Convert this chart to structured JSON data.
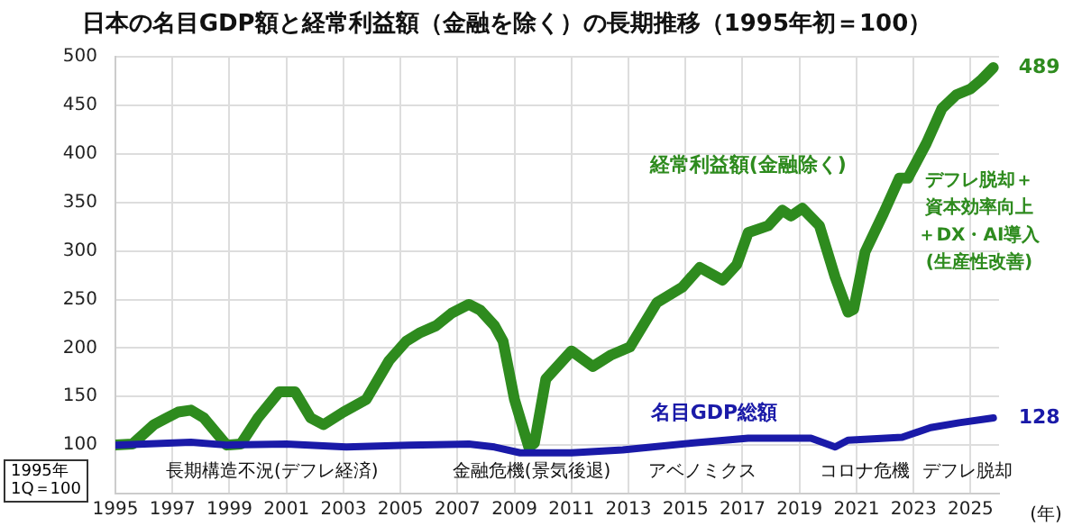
{
  "chart_data": {
    "type": "line",
    "title": "日本の名目GDP額と経常利益額（金融を除く）の長期推移（1995年初＝100）",
    "xlabel": "(年)",
    "xlim": [
      1995,
      2026
    ],
    "xticks": [
      1995,
      1997,
      1999,
      2001,
      2003,
      2005,
      2007,
      2009,
      2011,
      2013,
      2015,
      2017,
      2019,
      2021,
      2023,
      2025
    ],
    "ylim": [
      50,
      500
    ],
    "yticks": [
      100,
      150,
      200,
      250,
      300,
      350,
      400,
      450,
      500
    ],
    "grid": true,
    "legend": false,
    "marker": "none",
    "line_style": "solid",
    "series": [
      {
        "name": "経常利益額(金融除く)",
        "color": "#2e8b1e",
        "x": [
          1995,
          1995.6,
          1996.35,
          1996.8,
          1997.2,
          1997.65,
          1998.1,
          1998.9,
          1999.4,
          2000,
          2000.75,
          2001.3,
          2001.85,
          2002.3,
          2003,
          2003.8,
          2004.6,
          2005.2,
          2005.7,
          2006.25,
          2006.8,
          2007.4,
          2007.8,
          2008.3,
          2008.6,
          2009,
          2009.5,
          2009.7,
          2010.1,
          2011,
          2011.75,
          2012.4,
          2013.05,
          2014,
          2014.9,
          2015.5,
          2016.3,
          2016.8,
          2017.2,
          2017.9,
          2018.4,
          2018.7,
          2019.1,
          2019.7,
          2020.25,
          2020.7,
          2020.9,
          2021.3,
          2021.95,
          2022.5,
          2022.8,
          2023.45,
          2024,
          2024.5,
          2025,
          2025.4,
          2025.8
        ],
        "values": [
          100,
          101,
          121,
          128,
          134,
          136,
          128,
          100,
          101,
          128,
          155,
          155,
          128,
          121,
          134,
          147,
          187,
          207,
          216,
          223,
          236,
          245,
          239,
          223,
          207,
          147,
          98,
          102,
          168,
          197,
          181,
          193,
          201,
          247,
          263,
          283,
          270,
          286,
          319,
          326,
          342,
          336,
          344,
          326,
          273,
          237,
          240,
          299,
          339,
          375,
          375,
          411,
          447,
          461,
          467,
          477,
          489
        ],
        "value_labels": [
          null,
          null,
          null,
          null,
          null,
          null,
          null,
          null,
          null,
          null,
          null,
          null,
          null,
          null,
          null,
          null,
          null,
          null,
          null,
          null,
          null,
          null,
          null,
          null,
          null,
          null,
          null,
          null,
          null,
          null,
          null,
          null,
          null,
          null,
          null,
          null,
          null,
          null,
          null,
          null,
          null,
          null,
          null,
          null,
          null,
          null,
          null,
          null,
          null,
          null,
          null,
          null,
          null,
          null,
          null,
          null,
          "489"
        ]
      },
      {
        "name": "名目GDP総額",
        "color": "#1a1aa8",
        "x": [
          1995,
          1997.65,
          1998.9,
          2001,
          2003.1,
          2005.3,
          2007.4,
          2008.3,
          2009.2,
          2011,
          2012.8,
          2015.2,
          2017.2,
          2019.4,
          2020.25,
          2020.7,
          2022.6,
          2023.6,
          2024.6,
          2025.8
        ],
        "values": [
          100,
          103,
          100,
          101,
          98,
          100,
          101,
          98,
          92,
          92,
          95,
          102,
          107,
          107,
          98,
          105,
          108,
          118,
          123,
          128
        ],
        "value_labels": [
          null,
          null,
          null,
          null,
          null,
          null,
          null,
          null,
          null,
          null,
          null,
          null,
          null,
          null,
          null,
          null,
          null,
          null,
          null,
          "128"
        ]
      }
    ],
    "annotations": [
      "デフレ脱却＋",
      "資本効率向上",
      "＋DX・AI導入",
      "(生産性改善)",
      "1995年\n1Q＝100",
      "長期構造不況(デフレ経済)",
      "金融危機(景気後退)",
      "アベノミクス",
      "コロナ危機",
      "デフレ脱却"
    ]
  }
}
